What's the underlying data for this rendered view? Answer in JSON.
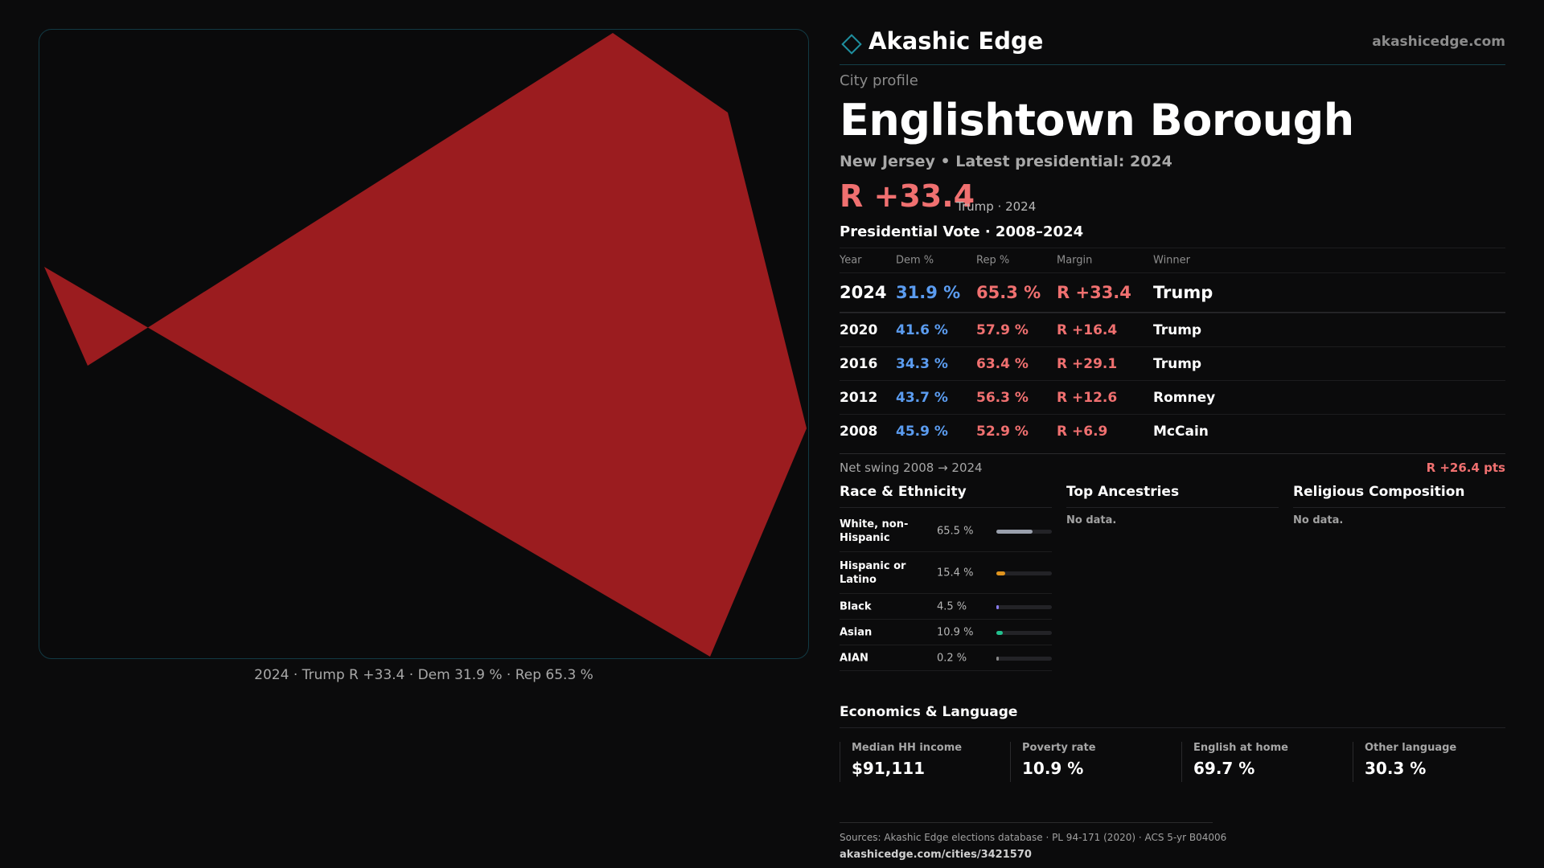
{
  "map": {
    "caption": "2024 · Trump R +33.4 · Dem 31.9 % · Rep 65.3 %",
    "fill_color": "#9b1c1f"
  },
  "header": {
    "brand": "Akashic Edge",
    "site": "akashicedge.com",
    "brand_icon": "diamond-icon"
  },
  "profile": {
    "eyebrow": "City profile",
    "title": "Englishtown Borough",
    "subtitle": "New Jersey • Latest presidential: 2024",
    "margin": "R +33.4",
    "margin_note": "Trump · 2024"
  },
  "presidential": {
    "title": "Presidential Vote · 2008–2024",
    "headers": {
      "year": "Year",
      "dem": "Dem %",
      "rep": "Rep %",
      "margin": "Margin",
      "winner": "Winner"
    },
    "rows": [
      {
        "year": "2024",
        "dem": "31.9 %",
        "rep": "65.3 %",
        "margin": "R +33.4",
        "winner": "Trump"
      },
      {
        "year": "2020",
        "dem": "41.6 %",
        "rep": "57.9 %",
        "margin": "R +16.4",
        "winner": "Trump"
      },
      {
        "year": "2016",
        "dem": "34.3 %",
        "rep": "63.4 %",
        "margin": "R +29.1",
        "winner": "Trump"
      },
      {
        "year": "2012",
        "dem": "43.7 %",
        "rep": "56.3 %",
        "margin": "R +12.6",
        "winner": "Romney"
      },
      {
        "year": "2008",
        "dem": "45.9 %",
        "rep": "52.9 %",
        "margin": "R +6.9",
        "winner": "McCain"
      }
    ],
    "swing_label": "Net swing 2008 → 2024",
    "swing_value": "R +26.4 pts"
  },
  "race": {
    "title": "Race & Ethnicity",
    "rows": [
      {
        "label": "White, non-Hispanic",
        "pct": "65.5 %",
        "fraction": 0.655,
        "color": "#9aa0ad"
      },
      {
        "label": "Hispanic or Latino",
        "pct": "15.4 %",
        "fraction": 0.154,
        "color": "#e0941e"
      },
      {
        "label": "Black",
        "pct": "4.5 %",
        "fraction": 0.045,
        "color": "#8a7cf0"
      },
      {
        "label": "Asian",
        "pct": "10.9 %",
        "fraction": 0.109,
        "color": "#22c08e"
      },
      {
        "label": "AIAN",
        "pct": "0.2 %",
        "fraction": 0.002,
        "color": "#888888"
      }
    ]
  },
  "ancestries": {
    "title": "Top Ancestries",
    "empty": "No data."
  },
  "religion": {
    "title": "Religious Composition",
    "empty": "No data."
  },
  "economics": {
    "title": "Economics & Language",
    "stats": [
      {
        "label": "Median HH income",
        "value": "$91,111"
      },
      {
        "label": "Poverty rate",
        "value": "10.9 %"
      },
      {
        "label": "English at home",
        "value": "69.7 %"
      },
      {
        "label": "Other language",
        "value": "30.3 %"
      }
    ]
  },
  "footer": {
    "sources": "Sources: Akashic Edge elections database · PL 94-171 (2020) · ACS 5-yr B04006",
    "url": "akashicedge.com/cities/3421570"
  }
}
